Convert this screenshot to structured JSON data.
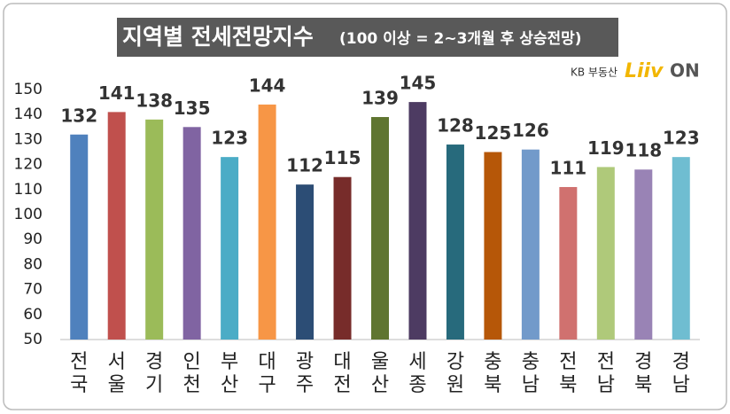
{
  "chart_data": {
    "type": "bar",
    "title": "지역별 전세전망지수",
    "subtitle": "(100 이상 = 2~3개월 후 상승전망)",
    "logo": {
      "brand": "KB 부동산",
      "product": "Liiv",
      "suffix": "ON"
    },
    "categories": [
      "전국",
      "서울",
      "경기",
      "인천",
      "부산",
      "대구",
      "광주",
      "대전",
      "울산",
      "세종",
      "강원",
      "충북",
      "충남",
      "전북",
      "전남",
      "경북",
      "경남"
    ],
    "values": [
      132,
      141,
      138,
      135,
      123,
      144,
      112,
      115,
      139,
      145,
      128,
      125,
      126,
      111,
      119,
      118,
      123
    ],
    "colors": [
      "#4f81bd",
      "#c0504d",
      "#9bbb59",
      "#8064a2",
      "#4bacc6",
      "#f79646",
      "#2c4d75",
      "#772c2a",
      "#5f7530",
      "#4d3b62",
      "#276a7c",
      "#b65708",
      "#729aca",
      "#d0716f",
      "#afc97a",
      "#9983b5",
      "#6fbdd1"
    ],
    "ylim": [
      50,
      150
    ],
    "yticks": [
      50,
      60,
      70,
      80,
      90,
      100,
      110,
      120,
      130,
      140,
      150
    ],
    "grid": false
  }
}
